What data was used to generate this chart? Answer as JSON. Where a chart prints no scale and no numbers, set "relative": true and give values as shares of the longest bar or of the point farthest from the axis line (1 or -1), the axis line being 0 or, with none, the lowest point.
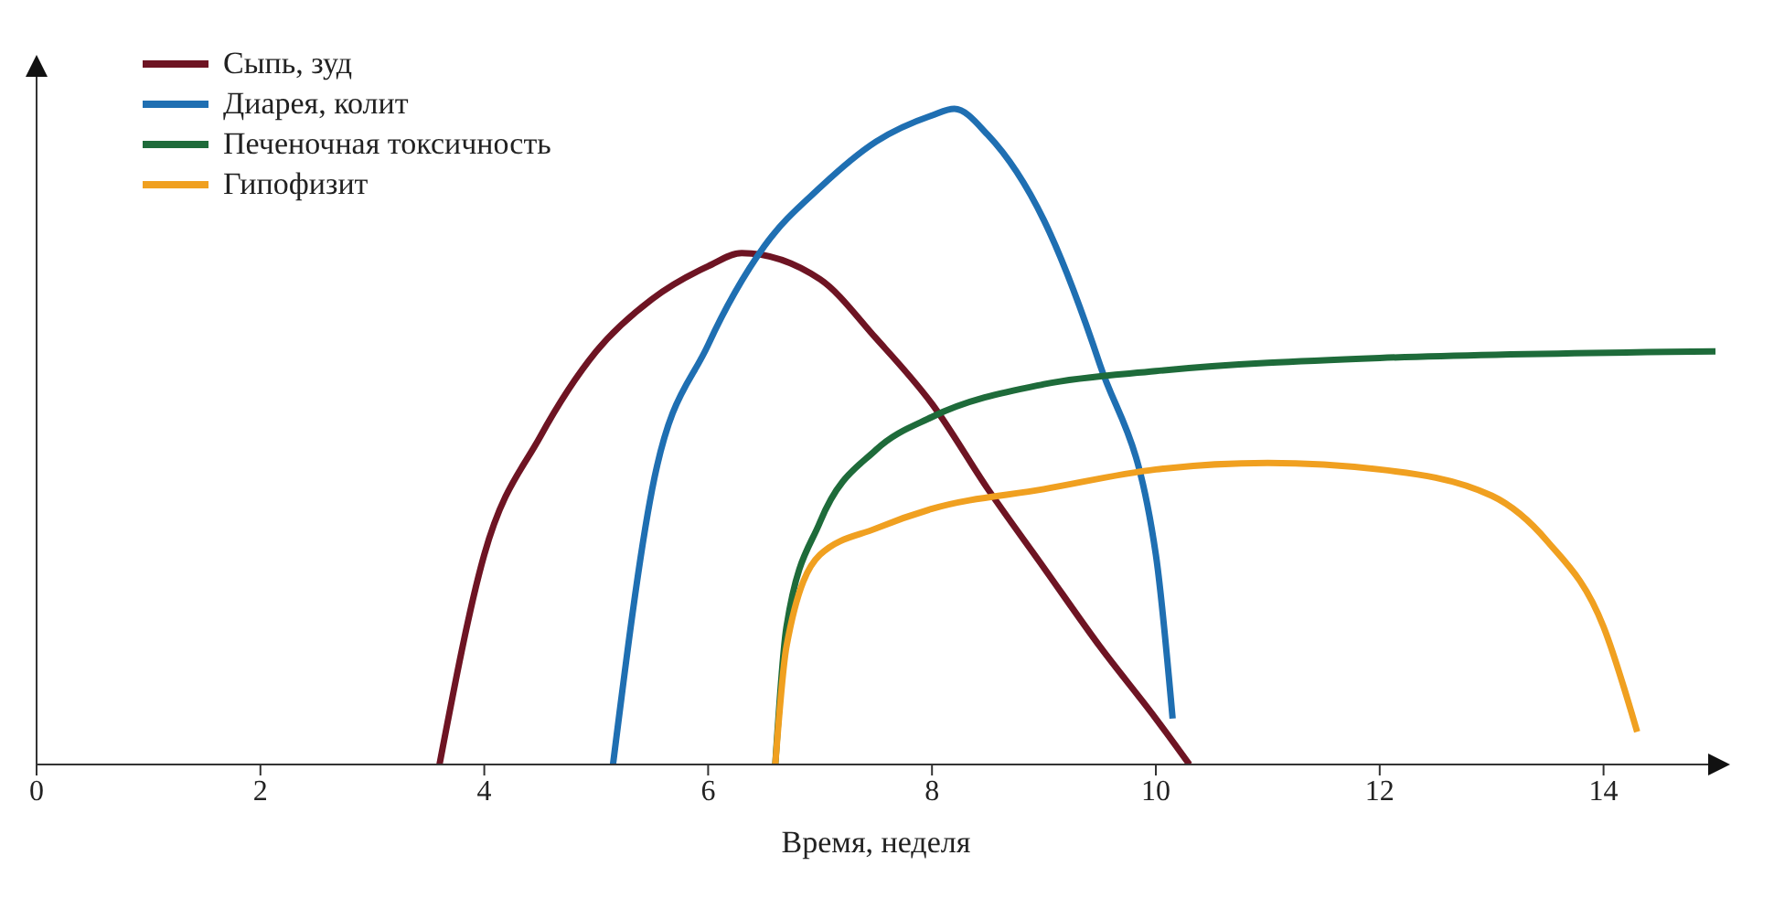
{
  "chart_data": {
    "type": "line",
    "xlabel": "Время, неделя",
    "relative": true,
    "xlim": [
      0,
      15
    ],
    "xticks": [
      0,
      2,
      4,
      6,
      8,
      10,
      12,
      14
    ],
    "grid": false,
    "legend": "top left",
    "marker": "none",
    "line_style": "solid",
    "series": [
      {
        "name": "Сыпь, зуд",
        "color": "#6e1423",
        "x": [
          3.6,
          4,
          4.5,
          5,
          5.5,
          6,
          6.3,
          7,
          7.5,
          8,
          8.5,
          9,
          9.5,
          10,
          10.3
        ],
        "values": [
          0,
          0.32,
          0.5,
          0.63,
          0.71,
          0.76,
          0.78,
          0.74,
          0.65,
          0.55,
          0.42,
          0.3,
          0.18,
          0.07,
          0
        ]
      },
      {
        "name": "Диарея, колит",
        "color": "#1f6fb2",
        "x": [
          5.15,
          5.5,
          6,
          6.5,
          7,
          7.5,
          8,
          8.2,
          8.5,
          9,
          9.5,
          10,
          10.15
        ],
        "values": [
          0,
          0.42,
          0.64,
          0.79,
          0.88,
          0.95,
          0.99,
          1,
          0.96,
          0.83,
          0.61,
          0.32,
          0.07
        ]
      },
      {
        "name": "Печеночная токсичность",
        "color": "#1e6b3a",
        "x": [
          6.6,
          6.7,
          7,
          7.5,
          8,
          9,
          10,
          12,
          15
        ],
        "values": [
          0,
          0.21,
          0.37,
          0.48,
          0.53,
          0.58,
          0.6,
          0.62,
          0.63
        ]
      },
      {
        "name": "Гипофизит",
        "color": "#f0a020",
        "x": [
          6.6,
          6.7,
          7,
          7.5,
          8,
          9,
          10,
          11,
          12,
          13,
          13.5,
          14,
          14.3
        ],
        "values": [
          0,
          0.18,
          0.32,
          0.36,
          0.39,
          0.42,
          0.45,
          0.46,
          0.45,
          0.41,
          0.34,
          0.21,
          0.05
        ]
      }
    ]
  }
}
